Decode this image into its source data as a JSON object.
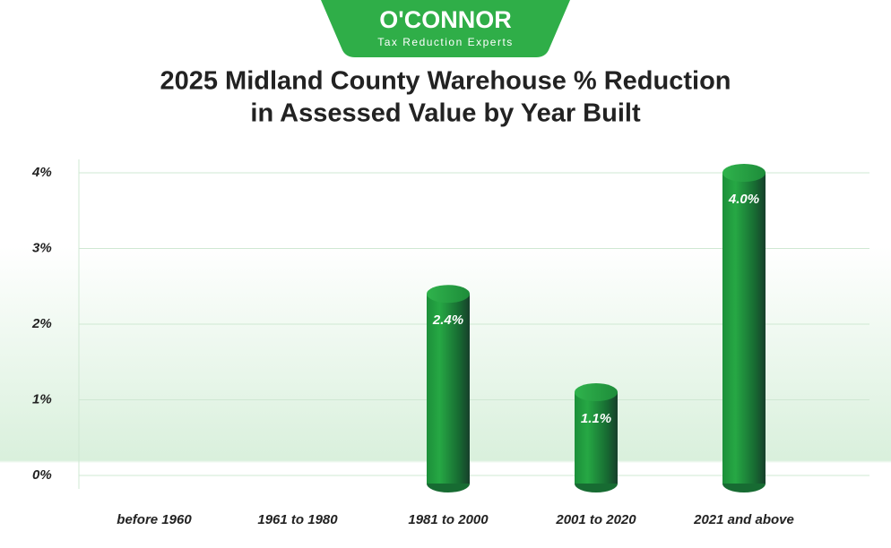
{
  "logo": {
    "name": "O'CONNOR",
    "tagline": "Tax Reduction Experts"
  },
  "chart_data": {
    "type": "bar",
    "title": "2025 Midland County Warehouse % Reduction",
    "subtitle": "in Assessed Value by Year Built",
    "categories": [
      "before 1960",
      "1961 to 1980",
      "1981 to 2000",
      "2001 to 2020",
      "2021 and above"
    ],
    "values": [
      0,
      0,
      2.4,
      1.1,
      4.0
    ],
    "value_labels": [
      null,
      null,
      "2.4%",
      "1.1%",
      "4.0%"
    ],
    "color": "#1f8a3a",
    "ylim": [
      0,
      4
    ],
    "yticks": [
      {
        "value": 0,
        "label": "0%"
      },
      {
        "value": 1,
        "label": "1%"
      },
      {
        "value": 2,
        "label": "2%"
      },
      {
        "value": 3,
        "label": "3%"
      },
      {
        "value": 4,
        "label": "4%"
      }
    ],
    "grid": true
  }
}
